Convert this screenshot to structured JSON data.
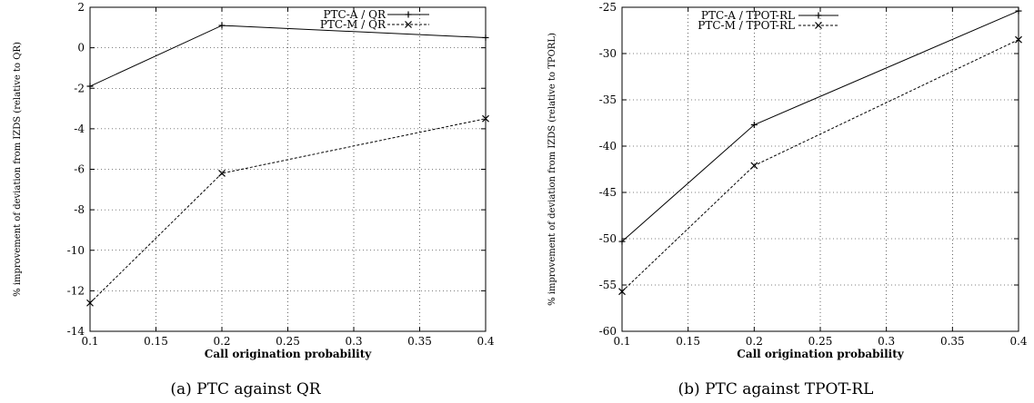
{
  "chart_data": [
    {
      "type": "line",
      "caption": "(a) PTC against QR",
      "xlabel": "Call origination probability",
      "ylabel": "% improvement of deviation from IZDS (relative to QR)",
      "xlim": [
        0.1,
        0.4
      ],
      "ylim": [
        -14,
        2
      ],
      "xticks": [
        0.1,
        0.15,
        0.2,
        0.25,
        0.3,
        0.35,
        0.4
      ],
      "xtick_labels": [
        "0.1",
        "0.15",
        "0.2",
        "0.25",
        "0.3",
        "0.35",
        "0.4"
      ],
      "yticks": [
        -14,
        -12,
        -10,
        -8,
        -6,
        -4,
        -2,
        0,
        2
      ],
      "ytick_labels": [
        "-14",
        "-12",
        "-10",
        "-8",
        "-6",
        "-4",
        "-2",
        "0",
        "2"
      ],
      "grid": true,
      "legend_position": "top-right",
      "series": [
        {
          "name": "PTC-A / QR",
          "style": "solid",
          "marker": "plus",
          "x": [
            0.1,
            0.2,
            0.4
          ],
          "y": [
            -1.9,
            1.1,
            0.5
          ]
        },
        {
          "name": "PTC-M / QR",
          "style": "dashed",
          "marker": "cross",
          "x": [
            0.1,
            0.2,
            0.4
          ],
          "y": [
            -12.6,
            -6.2,
            -3.5
          ]
        }
      ]
    },
    {
      "type": "line",
      "caption": "(b) PTC against TPOT-RL",
      "xlabel": "Call origination probability",
      "ylabel": "% improvement of deviation from IZDS (relative to TPORL)",
      "xlim": [
        0.1,
        0.4
      ],
      "ylim": [
        -60,
        -25
      ],
      "xticks": [
        0.1,
        0.15,
        0.2,
        0.25,
        0.3,
        0.35,
        0.4
      ],
      "xtick_labels": [
        "0.1",
        "0.15",
        "0.2",
        "0.25",
        "0.3",
        "0.35",
        "0.4"
      ],
      "yticks": [
        -60,
        -55,
        -50,
        -45,
        -40,
        -35,
        -30,
        -25
      ],
      "ytick_labels": [
        "-60",
        "-55",
        "-50",
        "-45",
        "-40",
        "-35",
        "-30",
        "-25"
      ],
      "grid": true,
      "legend_position": "top-left",
      "series": [
        {
          "name": "PTC-A / TPOT-RL",
          "style": "solid",
          "marker": "plus",
          "x": [
            0.1,
            0.2,
            0.4
          ],
          "y": [
            -50.3,
            -37.7,
            -25.4
          ]
        },
        {
          "name": "PTC-M / TPOT-RL",
          "style": "dashed",
          "marker": "cross",
          "x": [
            0.1,
            0.2,
            0.4
          ],
          "y": [
            -55.7,
            -42.1,
            -28.5
          ]
        }
      ]
    }
  ]
}
